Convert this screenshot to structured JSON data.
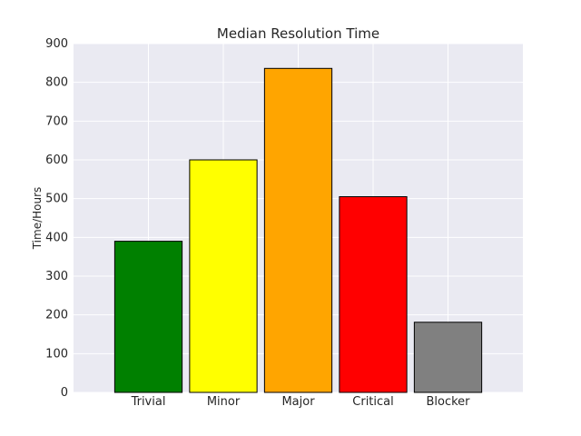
{
  "chart_data": {
    "type": "bar",
    "title": "Median Resolution Time",
    "xlabel": "",
    "ylabel": "Time/Hours",
    "categories": [
      "Trivial",
      "Minor",
      "Major",
      "Critical",
      "Blocker"
    ],
    "values": [
      390,
      600,
      836,
      505,
      181
    ],
    "colors": [
      "#008000",
      "#ffff00",
      "#ffa500",
      "#ff0000",
      "#808080"
    ],
    "ylim": [
      0,
      900
    ],
    "yticks": [
      0,
      100,
      200,
      300,
      400,
      500,
      600,
      700,
      800,
      900
    ],
    "grid": true,
    "background": "#eaeaf2",
    "edge_color": "#000000"
  }
}
